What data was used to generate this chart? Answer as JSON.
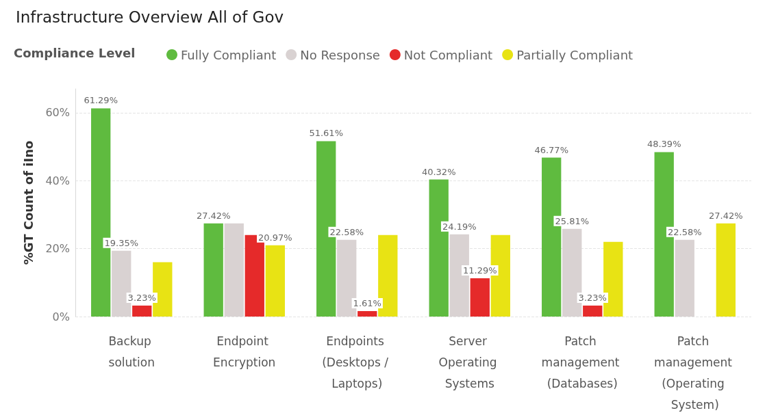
{
  "chart_data": {
    "type": "bar",
    "title": "Infrastructure Overview All of Gov",
    "ylabel": "%GT Count of iIno",
    "legend_title": "Compliance Level",
    "legend": "top left",
    "grid": "y",
    "categories": [
      "Backup solution",
      "Endpoint Encryption",
      "Endpoints (Desktops / Laptops)",
      "Server Operating Systems",
      "Patch management (Databases)",
      "Patch management (Operating System)"
    ],
    "series": [
      {
        "name": "Fully Compliant",
        "color": "#5fbb3f",
        "values": [
          61.29,
          27.42,
          51.61,
          40.32,
          46.77,
          48.39
        ],
        "value_labels": [
          "61.29%",
          "27.42%",
          "51.61%",
          "40.32%",
          "46.77%",
          "48.39%"
        ]
      },
      {
        "name": "No Response",
        "color": "#d9d2d2",
        "values": [
          19.35,
          27.4,
          22.58,
          24.19,
          25.81,
          22.58
        ],
        "value_labels": [
          "19.35%",
          null,
          "22.58%",
          "24.19%",
          "25.81%",
          "22.58%"
        ]
      },
      {
        "name": "Not Compliant",
        "color": "#e52a2a",
        "values": [
          3.23,
          24,
          1.61,
          11.29,
          3.23,
          null
        ],
        "value_labels": [
          "3.23%",
          null,
          "1.61%",
          "11.29%",
          "3.23%",
          null
        ]
      },
      {
        "name": "Partially Compliant",
        "color": "#e8e314",
        "values": [
          16,
          20.97,
          24,
          24,
          22,
          27.42
        ],
        "value_labels": [
          null,
          "20.97%",
          null,
          null,
          null,
          "27.42%"
        ]
      }
    ],
    "ylim": [
      0,
      67
    ],
    "yticks": [
      {
        "value": 0,
        "label": "0%"
      },
      {
        "value": 20,
        "label": "20%"
      },
      {
        "value": 40,
        "label": "40%"
      },
      {
        "value": 60,
        "label": "60%"
      }
    ]
  }
}
